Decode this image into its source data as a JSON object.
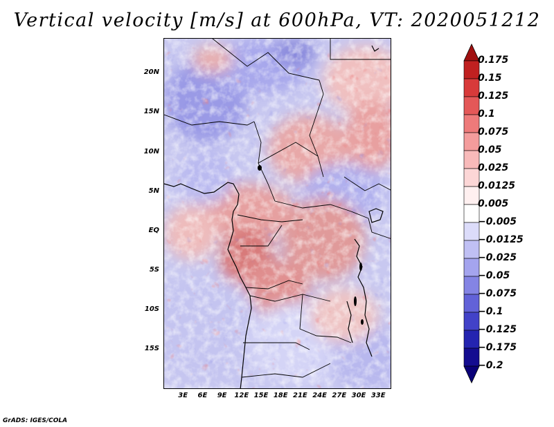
{
  "title": "Vertical velocity [m/s] at 600hPa, VT: 2020051212",
  "credit": "GrADS: IGES/COLA",
  "map": {
    "lat_range": [
      -20,
      24.5
    ],
    "lon_range": [
      0,
      35
    ],
    "lat_ticks": [
      {
        "value": 20,
        "label": "20N"
      },
      {
        "value": 15,
        "label": "15N"
      },
      {
        "value": 10,
        "label": "10N"
      },
      {
        "value": 5,
        "label": "5N"
      },
      {
        "value": 0,
        "label": "EQ"
      },
      {
        "value": -5,
        "label": "5S"
      },
      {
        "value": -10,
        "label": "10S"
      },
      {
        "value": -15,
        "label": "15S"
      }
    ],
    "lon_ticks": [
      {
        "value": 3,
        "label": "3E"
      },
      {
        "value": 6,
        "label": "6E"
      },
      {
        "value": 9,
        "label": "9E"
      },
      {
        "value": 12,
        "label": "12E"
      },
      {
        "value": 15,
        "label": "15E"
      },
      {
        "value": 18,
        "label": "18E"
      },
      {
        "value": 21,
        "label": "21E"
      },
      {
        "value": 24,
        "label": "24E"
      },
      {
        "value": 27,
        "label": "27E"
      },
      {
        "value": 30,
        "label": "30E"
      },
      {
        "value": 33,
        "label": "33E"
      }
    ]
  },
  "colorbar": {
    "levels": [
      "0.175",
      "0.15",
      "0.125",
      "0.1",
      "0.075",
      "0.05",
      "0.025",
      "0.0125",
      "0.005",
      "−0.005",
      "−0.0125",
      "−0.025",
      "−0.05",
      "−0.075",
      "−0.1",
      "−0.125",
      "−0.175",
      "−0.2"
    ],
    "colors": [
      "#a01010",
      "#c02020",
      "#d83a3a",
      "#e45858",
      "#ee7a7a",
      "#f49c9c",
      "#f8baba",
      "#fcd6d6",
      "#fff0f0",
      "#ffffff",
      "#dcdcfa",
      "#c0c0f4",
      "#a4a4ee",
      "#8484e4",
      "#6262d8",
      "#4242c8",
      "#2424b0",
      "#140c90",
      "#0a0078"
    ]
  }
}
